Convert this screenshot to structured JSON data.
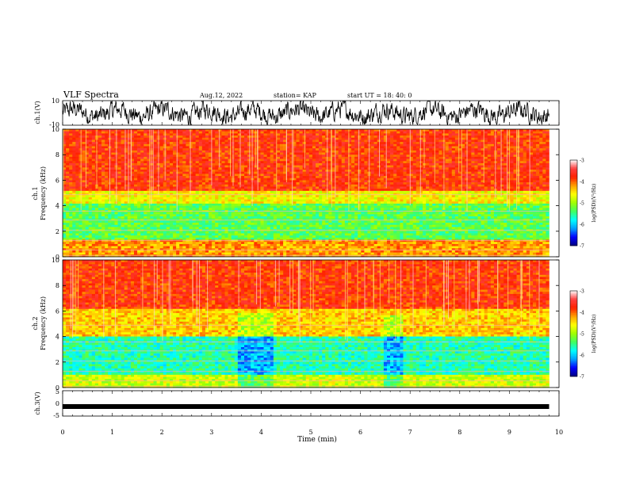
{
  "header": {
    "title": "VLF Spectra",
    "date": "Aug.12, 2022",
    "station": "station= KAP",
    "start": "start UT = 18: 40: 0"
  },
  "colors": {
    "waveform": "#000000",
    "colorbar": [
      "#000080",
      "#0000ff",
      "#00a0ff",
      "#00ffff",
      "#40ff60",
      "#a0ff00",
      "#ffff00",
      "#ffa000",
      "#ff2000",
      "#ff4040",
      "#ffffff"
    ]
  },
  "chart_data": [
    {
      "type": "line",
      "name": "ch1_waveform",
      "ylabel": "ch.1(V)",
      "ylim": [
        -10,
        10
      ],
      "yticks": [
        "10",
        "-10"
      ],
      "xlim": [
        0,
        10
      ],
      "description_of_values": "noisy waveform oscillating mostly between about -8 and 8 V"
    },
    {
      "type": "heatmap",
      "name": "ch1_spectrogram",
      "ylabel": "ch.1\nFrequency (kHz)",
      "ylabel_lines": [
        "ch.1",
        "Frequency (kHz)"
      ],
      "ylim": [
        0,
        10
      ],
      "yticks": [
        "0",
        "2",
        "4",
        "6",
        "8",
        "10"
      ],
      "xlim": [
        0,
        9.8
      ],
      "colorbar": {
        "label": "log(PSD)(V²/Hz)",
        "range": [
          -7,
          -3
        ],
        "ticks": [
          "-3",
          "-4",
          "-5",
          "-6",
          "-7"
        ]
      },
      "bands_khz": [
        {
          "from": 0,
          "to": 1.3,
          "level": -4.2
        },
        {
          "from": 1.3,
          "to": 4.2,
          "level": -5.3
        },
        {
          "from": 4.2,
          "to": 5.2,
          "level": -4.6
        },
        {
          "from": 5.2,
          "to": 10,
          "level": -3.8
        }
      ]
    },
    {
      "type": "heatmap",
      "name": "ch2_spectrogram",
      "ylabel": "ch.2\nFrequency (kHz)",
      "ylabel_lines": [
        "ch.2",
        "Frequency (kHz)"
      ],
      "ylim": [
        0,
        10
      ],
      "yticks": [
        "0",
        "2",
        "4",
        "6",
        "8",
        "10"
      ],
      "xlim": [
        0,
        9.8
      ],
      "colorbar": {
        "label": "log(PSD)(V²/Hz)",
        "range": [
          -7,
          -3
        ],
        "ticks": [
          "-3",
          "-4",
          "-5",
          "-6",
          "-7"
        ]
      },
      "bands_khz": [
        {
          "from": 0,
          "to": 1.0,
          "level": -4.8
        },
        {
          "from": 1.0,
          "to": 4.0,
          "level": -5.6
        },
        {
          "from": 4.0,
          "to": 6.2,
          "level": -4.4
        },
        {
          "from": 6.2,
          "to": 10,
          "level": -3.8
        }
      ],
      "features": [
        {
          "t_min": 3.55,
          "t_max": 4.25,
          "f_top_khz": 5.8
        },
        {
          "t_min": 6.5,
          "t_max": 6.85,
          "f_top_khz": 5.6
        }
      ]
    },
    {
      "type": "line",
      "name": "ch3_waveform",
      "ylabel": "ch.3(V)",
      "ylim": [
        -5,
        5
      ],
      "yticks": [
        "5",
        "0",
        "-5"
      ],
      "xlim": [
        0,
        9.8
      ],
      "level_v": -1.0
    }
  ],
  "xaxis": {
    "label": "Time (min)",
    "ticks": [
      "0",
      "1",
      "2",
      "3",
      "4",
      "5",
      "6",
      "7",
      "8",
      "9",
      "10"
    ]
  }
}
